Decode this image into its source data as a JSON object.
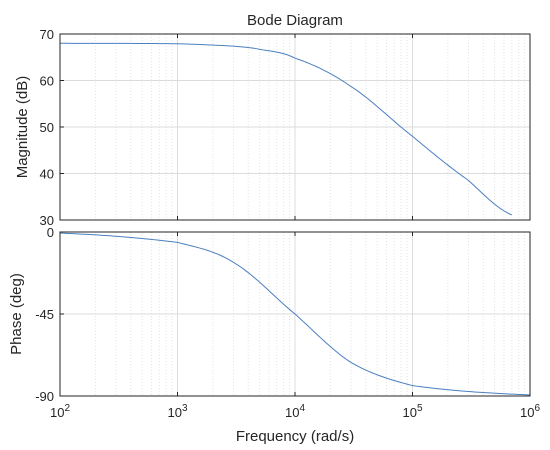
{
  "chart_data": {
    "type": "line",
    "title": "Bode Diagram",
    "xlabel": "Frequency  (rad/s)",
    "xscale": "log",
    "xlim": [
      100,
      1000000
    ],
    "x_ticks": [
      {
        "base": "10",
        "exp": "2"
      },
      {
        "base": "10",
        "exp": "3"
      },
      {
        "base": "10",
        "exp": "4"
      },
      {
        "base": "10",
        "exp": "5"
      },
      {
        "base": "10",
        "exp": "6"
      }
    ],
    "grid": true,
    "line_color": "#4a7fc1",
    "panels": [
      {
        "name": "magnitude",
        "ylabel": "Magnitude (dB)",
        "ylim": [
          30,
          70
        ],
        "y_ticks": [
          "70",
          "60",
          "50",
          "40",
          "30"
        ],
        "series": [
          {
            "x": [
              100,
              1000,
              3000,
              5000,
              10000,
              30000,
              100000,
              300000,
              700000
            ],
            "y": [
              68,
              67.9,
              67.4,
              66.7,
              64.8,
              58.7,
              48.0,
              38.5,
              31.1
            ]
          }
        ]
      },
      {
        "name": "phase",
        "ylabel": "Phase (deg)",
        "ylim": [
          -90,
          0
        ],
        "y_ticks": [
          "0",
          "-45",
          "-90"
        ],
        "series": [
          {
            "x": [
              100,
              1000,
              3000,
              10000,
              30000,
              100000,
              1000000
            ],
            "y": [
              -0.6,
              -5.7,
              -16.7,
              -45,
              -71.6,
              -84.3,
              -89.4
            ]
          }
        ]
      }
    ]
  }
}
